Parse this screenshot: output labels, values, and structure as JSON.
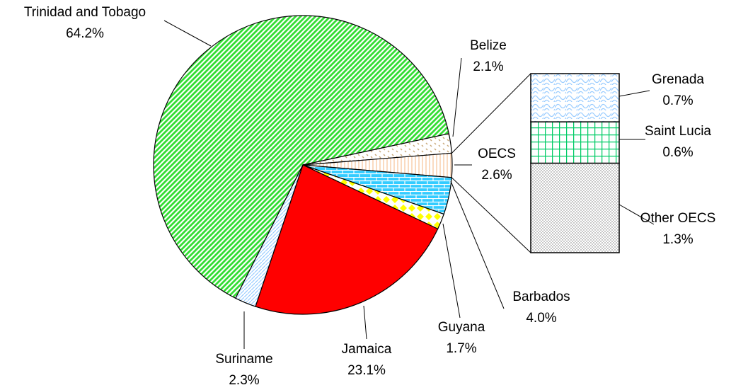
{
  "chart_data": {
    "type": "pie",
    "categories": [
      "Trinidad and Tobago",
      "Belize",
      "OECS",
      "Barbados",
      "Guyana",
      "Jamaica",
      "Suriname"
    ],
    "values": [
      64.2,
      2.1,
      2.6,
      4.0,
      1.7,
      23.1,
      2.3
    ],
    "value_labels": [
      "64.2%",
      "2.1%",
      "2.6%",
      "4.0%",
      "1.7%",
      "23.1%",
      "2.3%"
    ],
    "colors": [
      "#33dd33",
      "#c8a878",
      "#f8c8a0",
      "#33ccff",
      "#ffff00",
      "#ff0000",
      "#99ccff"
    ],
    "bar": {
      "categories": [
        "Grenada",
        "Saint Lucia",
        "Other OECS"
      ],
      "values": [
        0.7,
        0.6,
        1.3
      ],
      "value_labels": [
        "0.7%",
        "0.6%",
        "1.3%"
      ],
      "colors": [
        "#99ccff",
        "#00cc66",
        "#777777"
      ]
    }
  }
}
